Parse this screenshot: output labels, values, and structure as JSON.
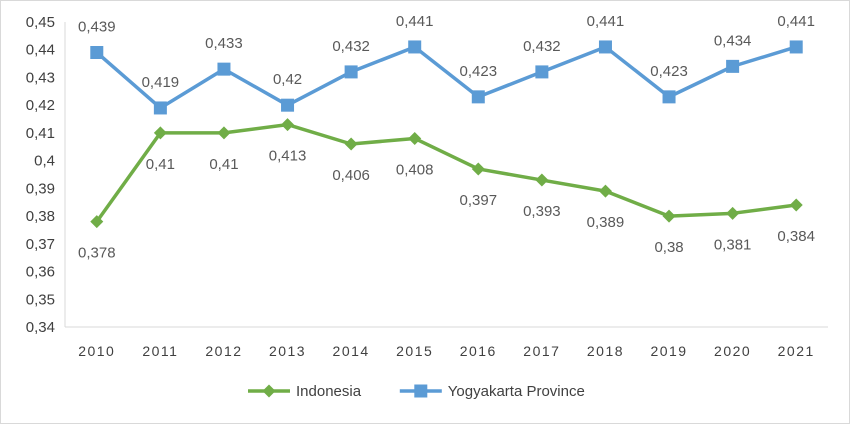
{
  "chart_data": {
    "type": "line",
    "categories": [
      "2010",
      "2011",
      "2012",
      "2013",
      "2014",
      "2015",
      "2016",
      "2017",
      "2018",
      "2019",
      "2020",
      "2021"
    ],
    "series": [
      {
        "name": "Indonesia",
        "color": "#70ad47",
        "marker": "diamond",
        "values": [
          0.378,
          0.41,
          0.41,
          0.413,
          0.406,
          0.408,
          0.397,
          0.393,
          0.389,
          0.38,
          0.381,
          0.384
        ],
        "labels": [
          "0,378",
          "0,41",
          "0,41",
          "0,413",
          "0,406",
          "0,408",
          "0,397",
          "0,393",
          "0,389",
          "0,38",
          "0,381",
          "0,384"
        ]
      },
      {
        "name": "Yogyakarta Province",
        "color": "#5b9bd5",
        "marker": "square",
        "values": [
          0.439,
          0.419,
          0.433,
          0.42,
          0.432,
          0.441,
          0.423,
          0.432,
          0.441,
          0.423,
          0.434,
          0.441
        ],
        "labels": [
          "0,439",
          "0,419",
          "0,433",
          "0,42",
          "0,432",
          "0,441",
          "0,423",
          "0,432",
          "0,441",
          "0,423",
          "0,434",
          "0,441"
        ]
      }
    ],
    "ylim": [
      0.34,
      0.45
    ],
    "yticks": [
      0.34,
      0.35,
      0.36,
      0.37,
      0.38,
      0.39,
      0.4,
      0.41,
      0.42,
      0.43,
      0.44,
      0.45
    ],
    "ytick_labels": [
      "0,34",
      "0,35",
      "0,36",
      "0,37",
      "0,38",
      "0,39",
      "0,4",
      "0,41",
      "0,42",
      "0,43",
      "0,44",
      "0,45"
    ],
    "grid": false,
    "legend_position": "bottom",
    "title": "",
    "xlabel": "",
    "ylabel": ""
  }
}
